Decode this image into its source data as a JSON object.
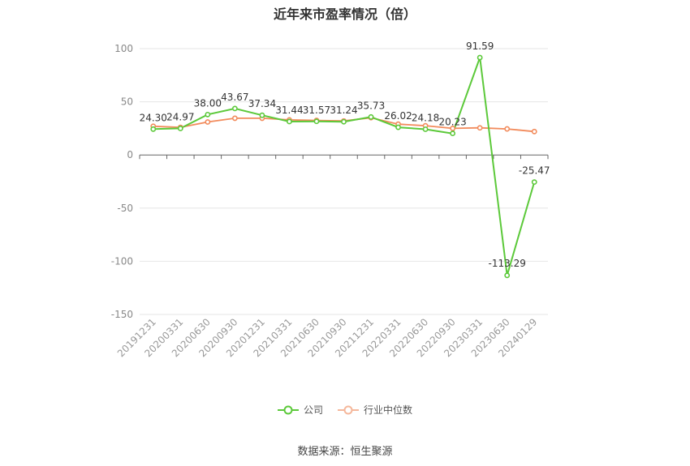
{
  "title": "近年来市盈率情况（倍）",
  "source": "数据来源：恒生聚源",
  "legend": [
    {
      "label": "公司",
      "color": "#5cc93a"
    },
    {
      "label": "行业中位数",
      "color": "#f28b5c"
    }
  ],
  "chart_data": {
    "type": "line",
    "title": "近年来市盈率情况（倍）",
    "xlabel": "",
    "ylabel": "",
    "ylim": [
      -150,
      100
    ],
    "yticks": [
      100,
      50,
      0,
      -50,
      -100,
      -150
    ],
    "grid": true,
    "legend_position": "bottom",
    "categories": [
      "20191231",
      "20200331",
      "20200630",
      "20200930",
      "20201231",
      "20210331",
      "20210630",
      "20210930",
      "20211231",
      "20220331",
      "20220630",
      "20220930",
      "20230331",
      "20230630",
      "20240129"
    ],
    "series": [
      {
        "name": "公司",
        "color": "#5cc93a",
        "values": [
          24.3,
          24.97,
          38.0,
          43.67,
          37.34,
          31.44,
          31.57,
          31.24,
          35.73,
          26.02,
          24.18,
          20.23,
          91.59,
          -113.29,
          -25.47
        ],
        "labels": [
          "24.30",
          "24.97",
          "38.00",
          "43.67",
          "37.34",
          "31.44",
          "31.57",
          "31.24",
          "35.73",
          "26.02",
          "24.18",
          "20.23",
          "91.59",
          "-113.29",
          "-25.47"
        ]
      },
      {
        "name": "行业中位数",
        "color": "#f28b5c",
        "values": [
          27,
          26,
          31,
          34.5,
          34.5,
          33,
          32.5,
          32,
          35,
          29,
          27.5,
          25,
          25.5,
          24.5,
          22
        ]
      }
    ]
  }
}
